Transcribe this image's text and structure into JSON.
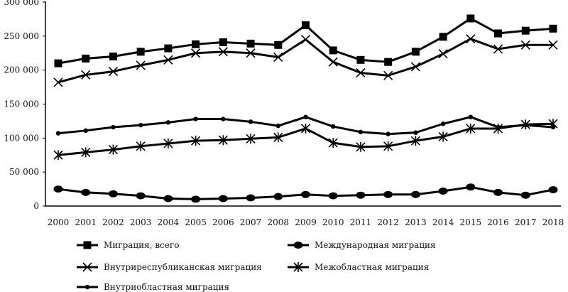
{
  "chart_data": {
    "type": "line",
    "title": "",
    "xlabel": "",
    "ylabel": "",
    "ylim": [
      0,
      300000
    ],
    "yticks": [
      0,
      50000,
      100000,
      150000,
      200000,
      250000,
      300000
    ],
    "ytick_labels": [
      "0",
      "50 000",
      "100 000",
      "150 000",
      "200 000",
      "250 000",
      "300 000"
    ],
    "x": [
      "2000",
      "2001",
      "2002",
      "2003",
      "2004",
      "2005",
      "2006",
      "2007",
      "2008",
      "2009",
      "2010",
      "2011",
      "2012",
      "2013",
      "2014",
      "2015",
      "2016",
      "2017",
      "2018"
    ],
    "grid": false,
    "legend_placement": "bottom",
    "series": [
      {
        "name": "Миграция, всего",
        "marker": "square",
        "values": [
          210000,
          217000,
          220000,
          227000,
          232000,
          238000,
          241000,
          239000,
          237000,
          266000,
          229000,
          215000,
          212000,
          227000,
          249000,
          276000,
          254000,
          258000,
          261000
        ]
      },
      {
        "name": "Международная миграция",
        "marker": "circle",
        "values": [
          25000,
          20000,
          18000,
          15000,
          11000,
          10000,
          11000,
          12000,
          14000,
          17000,
          15000,
          16000,
          17000,
          17000,
          22000,
          28000,
          20000,
          16000,
          24000
        ]
      },
      {
        "name": "Внутриреспубликанская миграция",
        "marker": "x",
        "values": [
          182000,
          193000,
          198000,
          207000,
          215000,
          225000,
          227000,
          225000,
          219000,
          245000,
          212000,
          196000,
          192000,
          205000,
          224000,
          246000,
          231000,
          237000,
          237000
        ]
      },
      {
        "name": "Межобластная миграция",
        "marker": "asterisk",
        "values": [
          75000,
          79000,
          83000,
          88000,
          92000,
          96000,
          97000,
          99000,
          101000,
          114000,
          93000,
          87000,
          88000,
          96000,
          102000,
          114000,
          114000,
          120000,
          121000
        ]
      },
      {
        "name": "Внутриобластная миграция",
        "marker": "dot",
        "values": [
          107000,
          111000,
          116000,
          119000,
          123000,
          128000,
          128000,
          124000,
          118000,
          131000,
          117000,
          109000,
          106000,
          108000,
          121000,
          131000,
          116000,
          119000,
          116000
        ]
      }
    ]
  }
}
